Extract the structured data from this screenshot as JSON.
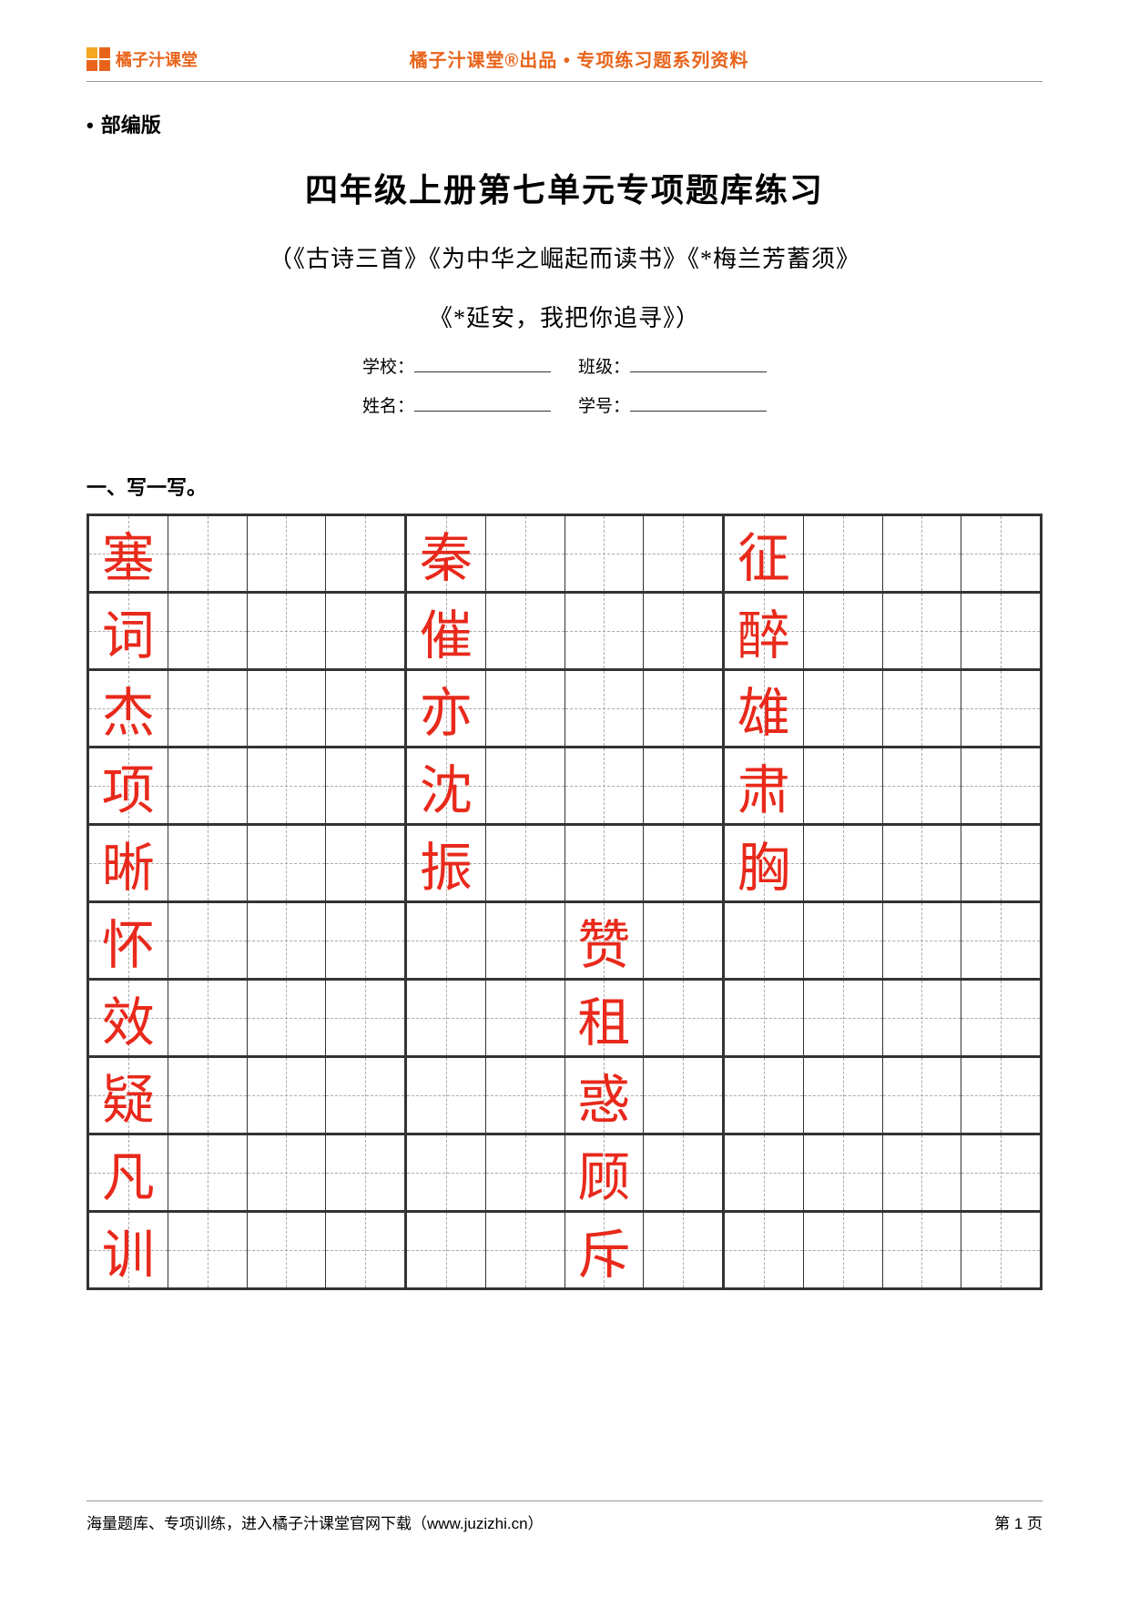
{
  "header": {
    "logo_text": "橘子汁课堂",
    "center_text": "橘子汁课堂®出品 • 专项练习题系列资料"
  },
  "edition": "部编版",
  "main_title": "四年级上册第七单元专项题库练习",
  "subtitle_line1": "（《古诗三首》《为中华之崛起而读书》《*梅兰芳蓄须》",
  "subtitle_line2": "《*延安，我把你追寻》）",
  "info": {
    "school_label": "学校：",
    "class_label": "班级：",
    "name_label": "姓名：",
    "id_label": "学号："
  },
  "section1_label": "一、写一写。",
  "grid": {
    "cols": 12,
    "char_color": "#e8291b",
    "rows": [
      {
        "chars": {
          "0": "塞",
          "4": "秦",
          "8": "征"
        }
      },
      {
        "chars": {
          "0": "词",
          "4": "催",
          "8": "醉"
        }
      },
      {
        "chars": {
          "0": "杰",
          "4": "亦",
          "8": "雄"
        }
      },
      {
        "chars": {
          "0": "项",
          "4": "沈",
          "8": "肃"
        }
      },
      {
        "chars": {
          "0": "晰",
          "4": "振",
          "8": "胸"
        }
      },
      {
        "chars": {
          "0": "怀",
          "6": "赞"
        }
      },
      {
        "chars": {
          "0": "效",
          "6": "租"
        }
      },
      {
        "chars": {
          "0": "疑",
          "6": "惑"
        }
      },
      {
        "chars": {
          "0": "凡",
          "6": "顾"
        }
      },
      {
        "chars": {
          "0": "训",
          "6": "斥"
        }
      }
    ]
  },
  "footer": {
    "left": "海量题库、专项训练，进入橘子汁课堂官网下载（www.juzizhi.cn）",
    "right": "第 1 页"
  }
}
